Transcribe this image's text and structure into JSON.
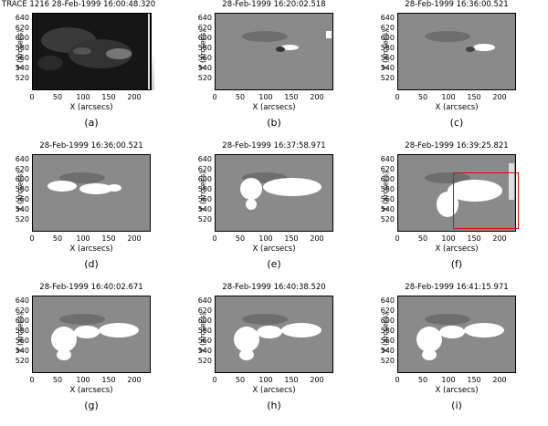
{
  "axes": {
    "ylabel": "Y (arcsecs)",
    "xlabel": "X (arcsecs)",
    "yticks": [
      "640",
      "620",
      "600",
      "580",
      "560",
      "540",
      "520"
    ],
    "xticks": [
      "0",
      "50",
      "100",
      "150",
      "200"
    ]
  },
  "panels": [
    {
      "title": "TRACE 1216 28-Feb-1999 16:00:48.320",
      "label": "(a)"
    },
    {
      "title": "28-Feb-1999 16:20:02.518",
      "label": "(b)"
    },
    {
      "title": "28-Feb-1999 16:36:00.521",
      "label": "(c)"
    },
    {
      "title": "28-Feb-1999 16:36:00.521",
      "label": "(d)"
    },
    {
      "title": "28-Feb-1999 16:37:58.971",
      "label": "(e)"
    },
    {
      "title": "28-Feb-1999 16:39:25.821",
      "label": "(f)"
    },
    {
      "title": "28-Feb-1999 16:40:02.671",
      "label": "(g)"
    },
    {
      "title": "28-Feb-1999 16:40:38.520",
      "label": "(h)"
    },
    {
      "title": "28-Feb-1999 16:41:15.971",
      "label": "(i)"
    }
  ],
  "colors": {
    "highlight_box": "#d01010",
    "background_gray": "#8a8a8a"
  }
}
